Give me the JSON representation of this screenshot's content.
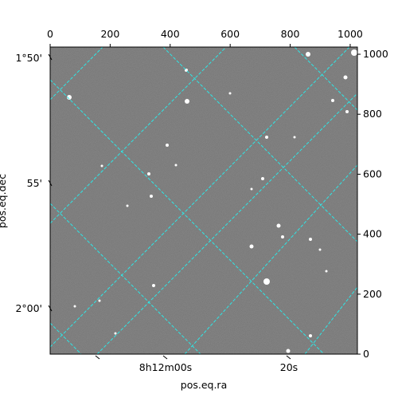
{
  "chart_data": {
    "type": "image",
    "xlabel": "pos.eq.ra",
    "ylabel": "pos.eq.dec",
    "xlim": [
      0,
      1024
    ],
    "xticks": [
      0,
      200,
      400,
      600,
      800,
      1000
    ],
    "ylim": [
      0,
      1024
    ],
    "yticks": [
      0,
      200,
      400,
      600,
      800,
      1000
    ],
    "ra_labels": [
      "8h12m00s",
      "20s"
    ],
    "dec_labels": [
      "1°50'",
      "55'",
      "2°00'"
    ]
  }
}
